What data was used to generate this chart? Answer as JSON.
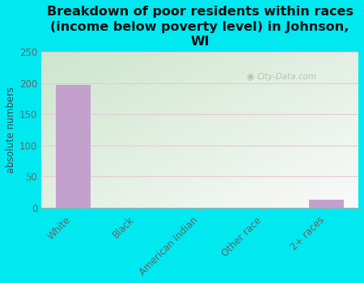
{
  "title": "Breakdown of poor residents within races\n(income below poverty level) in Johnson,\nWI",
  "categories": [
    "White",
    "Black",
    "American Indian",
    "Other race",
    "2+ races"
  ],
  "values": [
    197,
    0,
    0,
    0,
    13
  ],
  "bar_color": "#c4a0cc",
  "ylabel": "absolute numbers",
  "ylim": [
    0,
    250
  ],
  "yticks": [
    0,
    50,
    100,
    150,
    200,
    250
  ],
  "background_outer": "#00e8f0",
  "title_fontsize": 11.5,
  "watermark": "City-Data.com",
  "grid_color": "#e8c8d8",
  "bg_color_top_left": "#c8dfc0",
  "bg_color_bottom_right": "#eaf5ea"
}
